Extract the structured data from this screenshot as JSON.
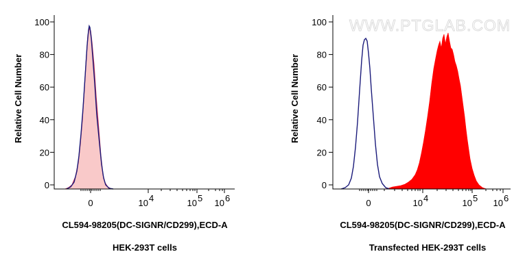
{
  "watermark": "WWW.PTGLAB.COM",
  "chart_data": [
    {
      "type": "area",
      "ylabel": "Relative Cell Number",
      "xlabel": "CL594-98205(DC-SIGNR/CD299),ECD-A",
      "caption": "HEK-293T cells",
      "ylim": [
        0,
        100
      ],
      "yticks": [
        "0",
        "20",
        "40",
        "60",
        "80",
        "100"
      ],
      "xticks": [
        {
          "base": "0",
          "exp": ""
        },
        {
          "base": "10",
          "exp": "4"
        },
        {
          "base": "10",
          "exp": "5"
        },
        {
          "base": "10",
          "exp": "6"
        }
      ],
      "series": [
        {
          "role": "control",
          "fill": "#f9c9c9",
          "stroke": "#1a1a7a",
          "peak_x": "0",
          "peak_y": 98
        },
        {
          "role": "sample",
          "fill": "#f9c9c9",
          "stroke": "#cc3355",
          "peak_x": "0",
          "peak_y": 97
        }
      ]
    },
    {
      "type": "area",
      "ylabel": "Relative Cell Number",
      "xlabel": "CL594-98205(DC-SIGNR/CD299),ECD-A",
      "caption": "Transfected HEK-293T cells",
      "ylim": [
        0,
        100
      ],
      "yticks": [
        "0",
        "20",
        "40",
        "60",
        "80",
        "100"
      ],
      "xticks": [
        {
          "base": "0",
          "exp": ""
        },
        {
          "base": "10",
          "exp": "4"
        },
        {
          "base": "10",
          "exp": "5"
        },
        {
          "base": "10",
          "exp": "6"
        }
      ],
      "series": [
        {
          "role": "control",
          "fill": "none",
          "stroke": "#1a1a7a",
          "peak_x": "0",
          "peak_y": 91
        },
        {
          "role": "sample",
          "fill": "#ff0000",
          "stroke": "#ff0000",
          "peak_x": "30000",
          "peak_y": 93
        }
      ]
    }
  ]
}
